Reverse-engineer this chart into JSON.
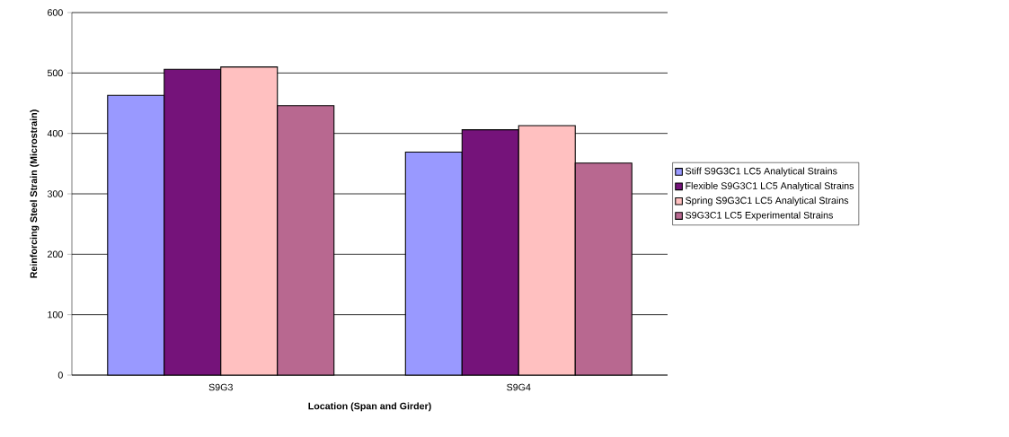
{
  "chart_data": {
    "type": "bar",
    "xlabel": "Location (Span and Girder)",
    "ylabel": "Reinforcing Steel Strain (Microstrain)",
    "categories": [
      "S9G3",
      "S9G4"
    ],
    "series": [
      {
        "name": "Stiff S9G3C1 LC5 Analytical Strains",
        "color": "#9999ff",
        "values": [
          463,
          369
        ]
      },
      {
        "name": "Flexible S9G3C1 LC5 Analytical Strains",
        "color": "#75137a",
        "values": [
          506,
          406
        ]
      },
      {
        "name": "Spring S9G3C1 LC5 Analytical Strains",
        "color": "#ffc0c0",
        "values": [
          510,
          413
        ]
      },
      {
        "name": "S9G3C1 LC5 Experimental Strains",
        "color": "#b86890",
        "values": [
          446,
          351
        ]
      }
    ],
    "ylim": [
      0,
      600
    ],
    "yticks": [
      0,
      100,
      200,
      300,
      400,
      500,
      600
    ],
    "grid": "y",
    "legend": "right"
  }
}
